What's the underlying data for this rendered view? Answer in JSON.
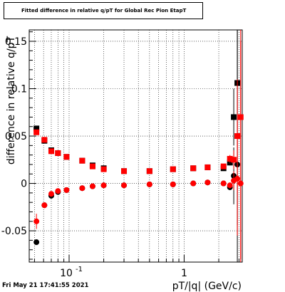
{
  "title": "Fitted difference in relative q/pT for Global Rec Pion EtapT",
  "timestamp": "Fri May 21 17:41:55 2021",
  "colors": {
    "series_black": "#000000",
    "series_red": "#ff0000",
    "grid": "#000000"
  },
  "chart_data": {
    "type": "scatter",
    "xlabel": "pT/|q| (GeV/c)",
    "ylabel": "difference in relative q/pT",
    "x_scale": "log",
    "xlim": [
      0.045,
      3.2
    ],
    "ylim": [
      -0.083,
      0.162
    ],
    "x_ticks": [
      {
        "value": 0.1,
        "base": "10",
        "exp": "-1"
      },
      {
        "value": 1,
        "label": "1"
      }
    ],
    "y_ticks": [
      {
        "value": -0.05,
        "label": "-0.05"
      },
      {
        "value": 0,
        "label": "0"
      },
      {
        "value": 0.05,
        "label": "0.05"
      },
      {
        "value": 0.1,
        "label": "0.1"
      },
      {
        "value": 0.15,
        "label": "0.15"
      }
    ],
    "grid": true,
    "series": [
      {
        "color": "black",
        "marker": "square",
        "points": [
          [
            0.052,
            0.058
          ],
          [
            0.061,
            0.045
          ],
          [
            0.07,
            0.035
          ],
          [
            0.08,
            0.032
          ],
          [
            0.095,
            0.028
          ],
          [
            0.13,
            0.024
          ],
          [
            0.16,
            0.019
          ],
          [
            0.2,
            0.016
          ],
          [
            0.3,
            0.013
          ],
          [
            0.5,
            0.013
          ],
          [
            0.8,
            0.015
          ],
          [
            1.2,
            0.016
          ],
          [
            1.6,
            0.017
          ],
          [
            2.2,
            0.016
          ],
          [
            2.5,
            0.022
          ],
          [
            2.7,
            0.07
          ],
          [
            2.9,
            0.106
          ]
        ],
        "errors": [
          0.002,
          0.002,
          0.002,
          0.001,
          0.001,
          0.001,
          0.001,
          0.001,
          0.001,
          0.001,
          0.001,
          0.001,
          0.002,
          0.002,
          0.003,
          0.03,
          0.15
        ]
      },
      {
        "color": "black",
        "marker": "circle",
        "points": [
          [
            0.052,
            -0.062
          ],
          [
            0.061,
            -0.023
          ],
          [
            0.07,
            -0.013
          ],
          [
            0.08,
            -0.009
          ],
          [
            0.095,
            -0.007
          ],
          [
            0.13,
            -0.005
          ],
          [
            0.16,
            -0.003
          ],
          [
            0.2,
            -0.002
          ],
          [
            0.3,
            -0.002
          ],
          [
            0.5,
            -0.001
          ],
          [
            0.8,
            -0.001
          ],
          [
            1.2,
            0.0
          ],
          [
            1.6,
            0.001
          ],
          [
            2.2,
            0.0
          ],
          [
            2.5,
            -0.004
          ],
          [
            2.7,
            0.008
          ],
          [
            2.9,
            0.02
          ]
        ],
        "errors": [
          0.003,
          0.002,
          0.002,
          0.001,
          0.001,
          0.001,
          0.001,
          0.001,
          0.001,
          0.001,
          0.001,
          0.001,
          0.002,
          0.002,
          0.003,
          0.03,
          0.15
        ]
      },
      {
        "color": "red",
        "marker": "square",
        "points": [
          [
            0.052,
            0.054
          ],
          [
            0.061,
            0.046
          ],
          [
            0.07,
            0.034
          ],
          [
            0.08,
            0.032
          ],
          [
            0.095,
            0.028
          ],
          [
            0.13,
            0.024
          ],
          [
            0.16,
            0.018
          ],
          [
            0.2,
            0.015
          ],
          [
            0.3,
            0.013
          ],
          [
            0.5,
            0.013
          ],
          [
            0.8,
            0.015
          ],
          [
            1.2,
            0.016
          ],
          [
            1.6,
            0.017
          ],
          [
            2.2,
            0.018
          ],
          [
            2.5,
            0.026
          ],
          [
            2.7,
            0.025
          ],
          [
            2.9,
            0.05
          ],
          [
            3.1,
            0.07
          ]
        ],
        "errors": [
          0.002,
          0.002,
          0.002,
          0.001,
          0.001,
          0.001,
          0.001,
          0.001,
          0.001,
          0.001,
          0.001,
          0.001,
          0.002,
          0.002,
          0.004,
          0.01,
          0.06,
          0.15
        ]
      },
      {
        "color": "red",
        "marker": "circle",
        "points": [
          [
            0.052,
            -0.04
          ],
          [
            0.061,
            -0.023
          ],
          [
            0.07,
            -0.011
          ],
          [
            0.08,
            -0.008
          ],
          [
            0.095,
            -0.007
          ],
          [
            0.13,
            -0.005
          ],
          [
            0.16,
            -0.003
          ],
          [
            0.2,
            -0.002
          ],
          [
            0.3,
            -0.002
          ],
          [
            0.5,
            -0.001
          ],
          [
            0.8,
            -0.001
          ],
          [
            1.2,
            0.0
          ],
          [
            1.6,
            0.001
          ],
          [
            2.2,
            0.0
          ],
          [
            2.5,
            -0.002
          ],
          [
            2.7,
            0.003
          ],
          [
            2.9,
            0.005
          ],
          [
            3.1,
            0.0
          ]
        ],
        "errors": [
          0.008,
          0.003,
          0.002,
          0.001,
          0.001,
          0.001,
          0.001,
          0.001,
          0.001,
          0.001,
          0.001,
          0.001,
          0.002,
          0.002,
          0.003,
          0.01,
          0.06,
          0.15
        ]
      }
    ]
  }
}
